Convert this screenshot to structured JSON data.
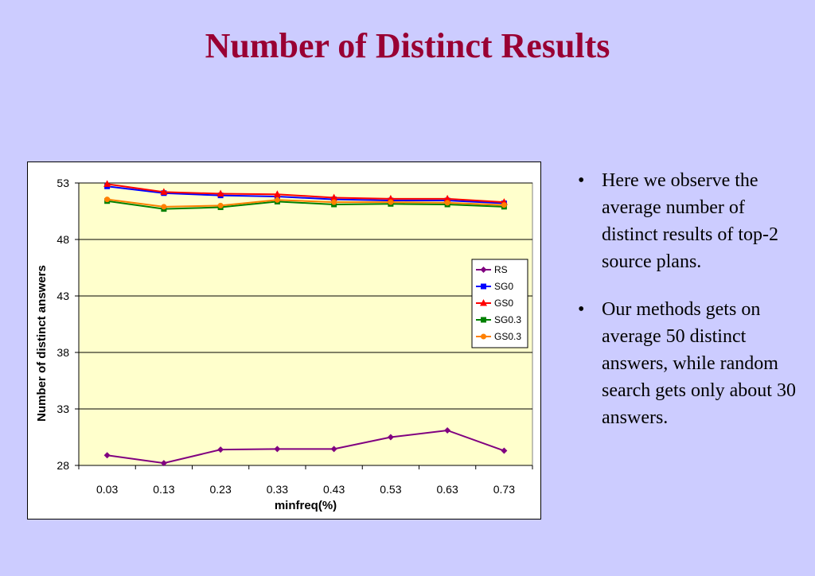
{
  "slide": {
    "title": "Number of Distinct Results",
    "bullet_symbol": "•",
    "bullets": [
      "Here we observe the average number of distinct results of top-2 source plans.",
      "Our methods gets on average 50 distinct answers, while random search gets only about 30 answers."
    ]
  },
  "chart_data": {
    "type": "line",
    "title": "",
    "xlabel": "minfreq(%)",
    "ylabel": "Number of distinct answers",
    "categories": [
      "0.03",
      "0.13",
      "0.23",
      "0.33",
      "0.43",
      "0.53",
      "0.63",
      "0.73"
    ],
    "ylim": [
      28,
      53
    ],
    "yticks": [
      "53",
      "48",
      "43",
      "38",
      "33",
      "28"
    ],
    "grid": true,
    "legend_position": "right",
    "plot_background": "#ffffcc",
    "series": [
      {
        "name": "RS",
        "color": "#800080",
        "marker": "diamond",
        "values": [
          28.9,
          28.2,
          29.4,
          29.45,
          29.45,
          30.5,
          31.1,
          29.3
        ]
      },
      {
        "name": "SG0",
        "color": "#0000ff",
        "marker": "square",
        "values": [
          52.7,
          52.1,
          51.9,
          51.8,
          51.55,
          51.45,
          51.45,
          51.2
        ]
      },
      {
        "name": "GS0",
        "color": "#ff0000",
        "marker": "triangle",
        "values": [
          52.9,
          52.2,
          52.05,
          52.0,
          51.7,
          51.6,
          51.6,
          51.3
        ]
      },
      {
        "name": "SG0.3",
        "color": "#008000",
        "marker": "square",
        "values": [
          51.4,
          50.7,
          50.85,
          51.35,
          51.1,
          51.15,
          51.1,
          50.9
        ]
      },
      {
        "name": "GS0.3",
        "color": "#ff8000",
        "marker": "circle",
        "values": [
          51.55,
          50.9,
          51.0,
          51.5,
          51.3,
          51.3,
          51.25,
          51.05
        ]
      }
    ]
  }
}
